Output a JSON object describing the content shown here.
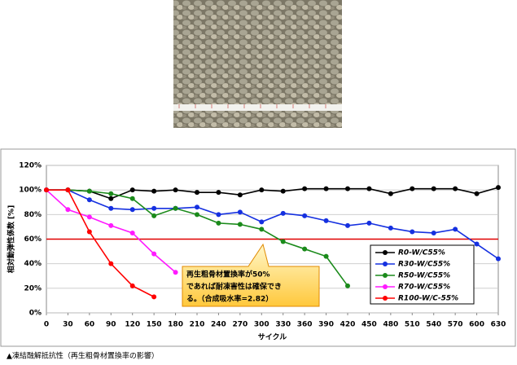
{
  "chart_data": {
    "type": "line",
    "x_label": "サイクル",
    "y_label": "相対動弾性係数 [%]",
    "caption": "▲凍結融解抵抗性（再生粗骨材置換率の影響）",
    "annotation": [
      "再生粗骨材置換率が50%",
      "であれば耐凍害性は確保でき",
      "る。（合成吸水率=2.82）"
    ],
    "x": [
      0,
      30,
      60,
      90,
      120,
      150,
      180,
      210,
      240,
      270,
      300,
      330,
      360,
      390,
      420,
      450,
      480,
      510,
      540,
      570,
      600,
      630
    ],
    "xlim": [
      0,
      630
    ],
    "xticks": [
      0,
      30,
      60,
      90,
      120,
      150,
      180,
      210,
      240,
      270,
      300,
      330,
      360,
      390,
      420,
      450,
      480,
      510,
      540,
      570,
      600,
      630
    ],
    "ylim": [
      0,
      120
    ],
    "yticks": [
      {
        "value": 0,
        "label": "0%"
      },
      {
        "value": 20,
        "label": "20%"
      },
      {
        "value": 40,
        "label": "40%"
      },
      {
        "value": 60,
        "label": "60%"
      },
      {
        "value": 80,
        "label": "80%"
      },
      {
        "value": 100,
        "label": "100%"
      },
      {
        "value": 120,
        "label": "120%"
      }
    ],
    "grid": true,
    "reference_line": {
      "value": 60,
      "color": "#e00000"
    },
    "series": [
      {
        "name": "R0-W/C55%",
        "color": "#000000",
        "values": [
          100,
          100,
          99,
          93,
          100,
          99,
          100,
          98,
          98,
          96,
          100,
          99,
          101,
          101,
          101,
          101,
          97,
          101,
          101,
          101,
          97,
          102
        ]
      },
      {
        "name": "R30-W/C55%",
        "color": "#1530e0",
        "values": [
          100,
          100,
          92,
          85,
          84,
          85,
          85,
          86,
          80,
          82,
          74,
          81,
          79,
          75,
          71,
          73,
          69,
          66,
          65,
          68,
          56,
          44
        ]
      },
      {
        "name": "R50-W/C55%",
        "color": "#1a8a1a",
        "values": [
          100,
          100,
          99,
          97,
          93,
          79,
          85,
          80,
          73,
          72,
          68,
          58,
          52,
          46,
          22,
          null,
          null,
          null,
          null,
          null,
          null,
          null
        ]
      },
      {
        "name": "R70-W/C55%",
        "color": "#ff1aff",
        "values": [
          100,
          84,
          78,
          71,
          65,
          48,
          33,
          null,
          null,
          null,
          null,
          null,
          null,
          null,
          null,
          null,
          null,
          null,
          null,
          null,
          null,
          null
        ]
      },
      {
        "name": "R100-W/C-55%",
        "color": "#ff0000",
        "values": [
          100,
          100,
          66,
          40,
          22,
          13,
          null,
          null,
          null,
          null,
          null,
          null,
          null,
          null,
          null,
          null,
          null,
          null,
          null,
          null,
          null,
          null
        ]
      }
    ]
  }
}
